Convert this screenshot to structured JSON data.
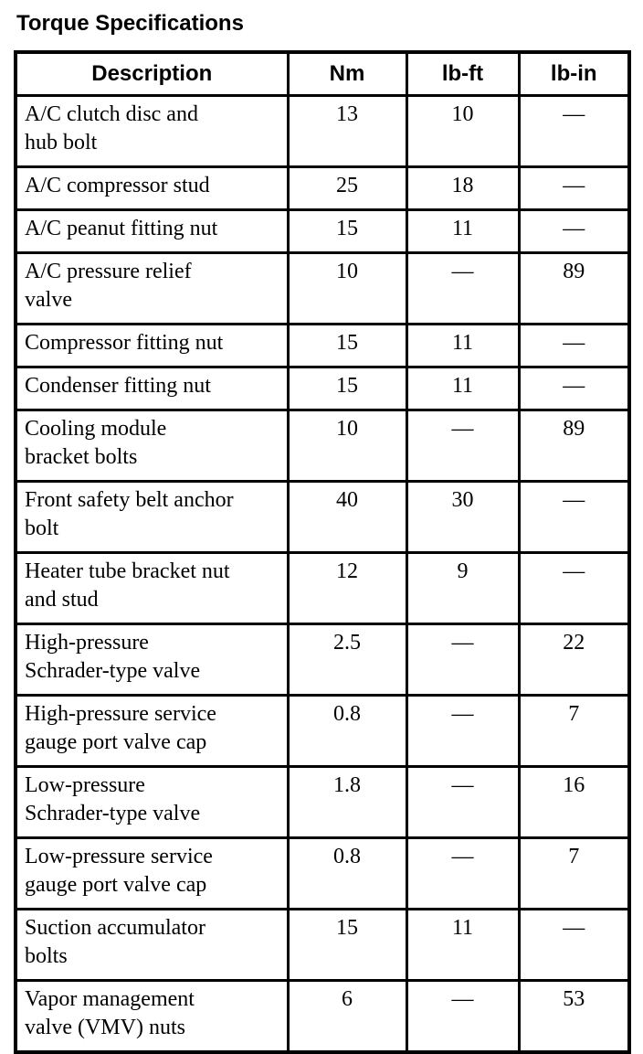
{
  "title": "Torque Specifications",
  "table": {
    "headers": [
      "Description",
      "Nm",
      "lb-ft",
      "lb-in"
    ],
    "rows": [
      {
        "description": "A/C clutch disc and\nhub bolt",
        "nm": "13",
        "lb_ft": "10",
        "lb_in": "—"
      },
      {
        "description": "A/C compressor stud",
        "nm": "25",
        "lb_ft": "18",
        "lb_in": "—"
      },
      {
        "description": "A/C peanut fitting nut",
        "nm": "15",
        "lb_ft": "11",
        "lb_in": "—"
      },
      {
        "description": "A/C pressure relief\nvalve",
        "nm": "10",
        "lb_ft": "—",
        "lb_in": "89"
      },
      {
        "description": "Compressor fitting nut",
        "nm": "15",
        "lb_ft": "11",
        "lb_in": "—"
      },
      {
        "description": "Condenser fitting nut",
        "nm": "15",
        "lb_ft": "11",
        "lb_in": "—"
      },
      {
        "description": "Cooling module\nbracket bolts",
        "nm": "10",
        "lb_ft": "—",
        "lb_in": "89"
      },
      {
        "description": "Front safety belt anchor\nbolt",
        "nm": "40",
        "lb_ft": "30",
        "lb_in": "—"
      },
      {
        "description": "Heater tube bracket nut\nand stud",
        "nm": "12",
        "lb_ft": "9",
        "lb_in": "—"
      },
      {
        "description": "High-pressure\nSchrader-type valve",
        "nm": "2.5",
        "lb_ft": "—",
        "lb_in": "22"
      },
      {
        "description": "High-pressure service\ngauge port valve cap",
        "nm": "0.8",
        "lb_ft": "—",
        "lb_in": "7"
      },
      {
        "description": "Low-pressure\nSchrader-type valve",
        "nm": "1.8",
        "lb_ft": "—",
        "lb_in": "16"
      },
      {
        "description": "Low-pressure service\ngauge port valve cap",
        "nm": "0.8",
        "lb_ft": "—",
        "lb_in": "7"
      },
      {
        "description": "Suction accumulator\nbolts",
        "nm": "15",
        "lb_ft": "11",
        "lb_in": "—"
      },
      {
        "description": "Vapor management\nvalve (VMV) nuts",
        "nm": "6",
        "lb_ft": "—",
        "lb_in": "53"
      }
    ]
  }
}
